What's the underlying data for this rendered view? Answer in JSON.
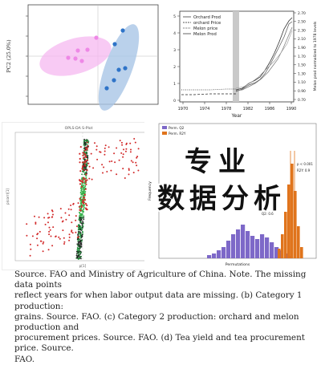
{
  "pca_panel": {
    "y_axis_label": "PC2 (25.0%)",
    "group_pink_color": "#ee88e6",
    "group_blue_color": "#2f74c8"
  },
  "line_panel": {
    "legend": [
      "Orchard Prod",
      "orchard Price",
      "Melon price",
      "Melon Prod"
    ],
    "x_axis_label": "Year",
    "right_axis_label": "Melon prod normalized to 1978 levels",
    "x_ticks": [
      "1970",
      "1974",
      "1978",
      "1982",
      "1986",
      "1990"
    ],
    "right_ticks": [
      "2.70",
      "2.50",
      "2.30",
      "2.10",
      "1.90",
      "1.70",
      "1.50",
      "1.30",
      "1.10",
      "0.90",
      "0.70"
    ],
    "left_ticks": [
      "5",
      "4",
      "3",
      "2",
      "1",
      "0"
    ]
  },
  "splot_panel": {
    "title": "OPLS-DA S-Plot",
    "y_axis_label": "p(corr)[1]",
    "x_axis_label": "p[1]"
  },
  "hist_panel": {
    "legend": [
      "Perm. Q2",
      "Perm. R2Y"
    ],
    "y_axis_label": "Frequency",
    "x_axis_label": "Permutations",
    "annotations": [
      "p < 0.001",
      "R2Y: 0.9",
      "Q2: 0.6"
    ],
    "colors": {
      "purple": "#7d68c8",
      "orange": "#e0741c"
    }
  },
  "overlay_text": {
    "line1": "专业",
    "line2": "数据分析"
  },
  "caption": {
    "line1": "Source. FAO and Ministry of Agriculture of China. Note. The missing data points",
    "line2": "reflect years for when labor output data are missing. (b) Category 1 production:",
    "line3": "grains. Source. FAO. (c) Category 2 production: orchard and melon production and",
    "line4": "procurement prices. Source. FAO. (d) Tea yield and tea procurement price. Source.",
    "line5": "FAO."
  }
}
